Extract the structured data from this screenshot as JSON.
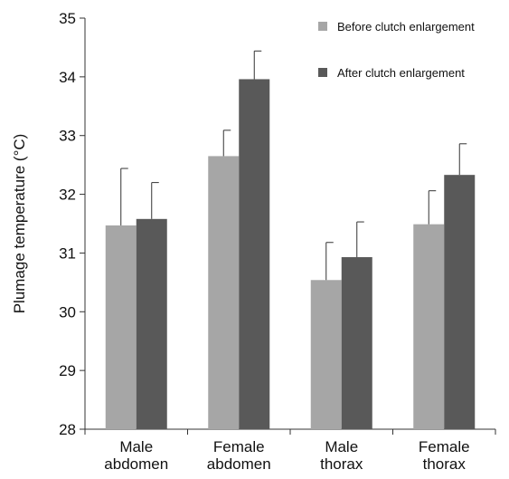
{
  "chart_data": {
    "type": "bar",
    "categories": [
      [
        "Male",
        "abdomen"
      ],
      [
        "Female",
        "abdomen"
      ],
      [
        "Male",
        "thorax"
      ],
      [
        "Female",
        "thorax"
      ]
    ],
    "series": [
      {
        "name": "Before clutch enlargement",
        "color": "#a6a6a6",
        "values": [
          31.47,
          32.65,
          30.54,
          31.49
        ],
        "error": [
          0.97,
          0.44,
          0.64,
          0.57
        ]
      },
      {
        "name": "After clutch enlargement",
        "color": "#595959",
        "values": [
          31.58,
          33.96,
          30.93,
          32.33
        ],
        "error": [
          0.62,
          0.48,
          0.6,
          0.53
        ]
      }
    ],
    "ylabel": "Plumage temperature (°C)",
    "xlabel": "",
    "ylim": [
      28,
      35
    ],
    "yticks": [
      28,
      29,
      30,
      31,
      32,
      33,
      34,
      35
    ],
    "grid": false,
    "legend_position": "top-right"
  }
}
